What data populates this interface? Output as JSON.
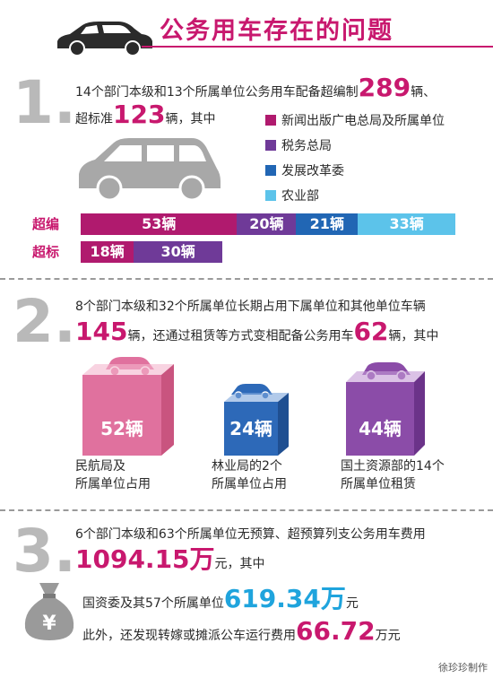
{
  "header": {
    "title": "公务用车存在的问题"
  },
  "section1": {
    "number": "1.",
    "line1_pre": "14个部门本级和13个所属单位公务用车配备超编制",
    "line1_num": "289",
    "line1_post": "辆、",
    "line2_pre": "超标准",
    "line2_num": "123",
    "line2_post": "辆，其中",
    "legend": [
      {
        "label": "新闻出版广电总局及所属单位",
        "color": "#b01a6e"
      },
      {
        "label": "税务总局",
        "color": "#6f3a98"
      },
      {
        "label": "发展改革委",
        "color": "#2166b4"
      },
      {
        "label": "农业部",
        "color": "#5cc3ea"
      }
    ],
    "bars": [
      {
        "label": "超编",
        "segments": [
          {
            "text": "53辆",
            "value": 53,
            "color": "#b01a6e"
          },
          {
            "text": "20辆",
            "value": 20,
            "color": "#6f3a98"
          },
          {
            "text": "21辆",
            "value": 21,
            "color": "#2166b4"
          },
          {
            "text": "33辆",
            "value": 33,
            "color": "#5cc3ea"
          }
        ]
      },
      {
        "label": "超标",
        "segments": [
          {
            "text": "18辆",
            "value": 18,
            "color": "#b01a6e"
          },
          {
            "text": "30辆",
            "value": 30,
            "color": "#6f3a98"
          }
        ]
      }
    ]
  },
  "section2": {
    "number": "2.",
    "line1": "8个部门本级和32个所属单位长期占用下属单位和其他单位车辆",
    "line2_num1": "145",
    "line2_mid": "辆，还通过租赁等方式变相配备公务用车",
    "line2_num2": "62",
    "line2_post": "辆，其中",
    "boxes": [
      {
        "value": "52辆",
        "caption1": "民航局及",
        "caption2": "所属单位占用",
        "color": "#e0719e",
        "top": "#f3b6cd",
        "side": "#c9547f"
      },
      {
        "value": "24辆",
        "caption1": "林业局的2个",
        "caption2": "所属单位占用",
        "color": "#2d69b8",
        "top": "#7ea6dc",
        "side": "#1f4f91"
      },
      {
        "value": "44辆",
        "caption1": "国土资源部的14个",
        "caption2": "所属单位租赁",
        "color": "#8b4ca8",
        "top": "#c39ad6",
        "side": "#6b3389"
      }
    ]
  },
  "section3": {
    "number": "3.",
    "line1": "6个部门本级和63个所属单位无预算、超预算列支公务用车费用",
    "line2_num": "1094.15万",
    "line2_post": "元，其中",
    "line3_pre": "国资委及其57个所属单位",
    "line3_num": "619.34万",
    "line3_post": "元",
    "line4_pre": "此外，还发现转嫁或摊派公车运行费用",
    "line4_num": "66.72",
    "line4_post": "万元",
    "bag_symbol": "¥"
  },
  "footer": {
    "credit": "徐珍珍制作"
  }
}
